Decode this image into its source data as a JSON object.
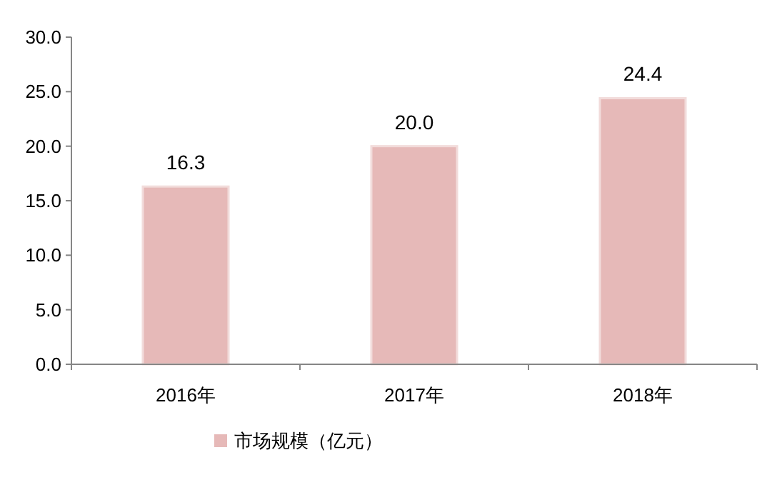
{
  "chart_data": {
    "type": "bar",
    "categories": [
      "2016年",
      "2017年",
      "2018年"
    ],
    "series": [
      {
        "name": "市场规模（亿元）",
        "color": "#e6b9b8",
        "values": [
          16.3,
          20.0,
          24.4
        ]
      }
    ],
    "ylim": [
      0,
      30
    ],
    "yticks": [
      {
        "value": 0,
        "label": "0.0"
      },
      {
        "value": 5,
        "label": "5.0"
      },
      {
        "value": 10,
        "label": "10.0"
      },
      {
        "value": 15,
        "label": "15.0"
      },
      {
        "value": 20,
        "label": "20.0"
      },
      {
        "value": 25,
        "label": "25.0"
      },
      {
        "value": 30,
        "label": "30.0"
      }
    ],
    "value_labels": [
      "16.3",
      "20.0",
      "24.4"
    ],
    "grid": false,
    "legend": "bottom"
  }
}
